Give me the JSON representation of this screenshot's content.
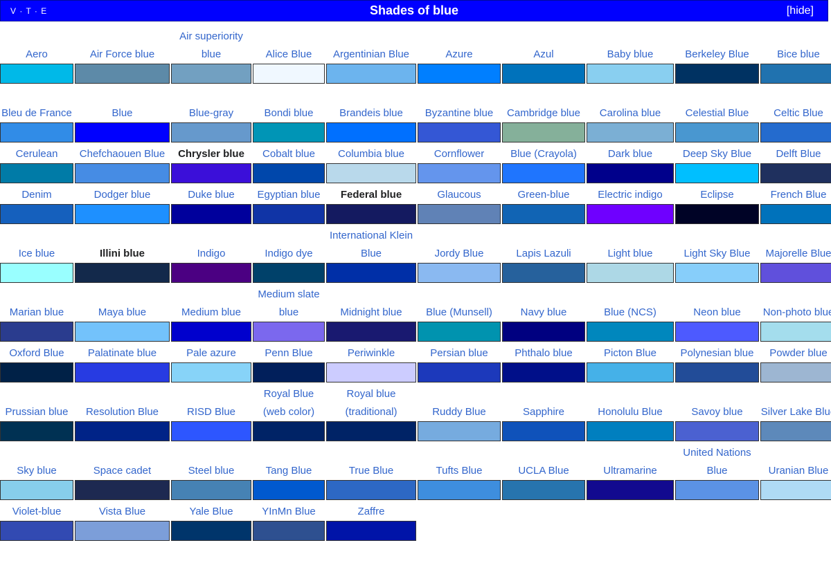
{
  "header": {
    "vte": [
      "V",
      "T",
      "E"
    ],
    "title": "Shades of blue",
    "hide_label": "[hide]",
    "background": "#0000ff"
  },
  "rows": [
    {
      "tall": true,
      "cells": [
        {
          "label": "Aero",
          "color": "#00b9e8"
        },
        {
          "label": "Air Force blue",
          "color": "#5d8aa8"
        },
        {
          "label": "Air superiority blue",
          "color": "#72a0c1"
        },
        {
          "label": "Alice Blue",
          "color": "#f0f8ff"
        },
        {
          "label": "Argentinian Blue",
          "color": "#6cb4ee"
        },
        {
          "label": "Azure",
          "color": "#007fff"
        },
        {
          "label": "Azul",
          "color": "#0072bb"
        },
        {
          "label": "Baby blue",
          "color": "#89cff0"
        },
        {
          "label": "Berkeley Blue",
          "color": "#003262"
        },
        {
          "label": "Bice blue",
          "color": "#2072af"
        }
      ]
    },
    {
      "tall": true,
      "cells": [
        {
          "label": "Bleu de France",
          "color": "#318ce7"
        },
        {
          "label": "Blue",
          "color": "#0000ff"
        },
        {
          "label": "Blue-gray",
          "color": "#6699cc"
        },
        {
          "label": "Bondi blue",
          "color": "#0095b6"
        },
        {
          "label": "Brandeis blue",
          "color": "#0070ff"
        },
        {
          "label": "Byzantine blue",
          "color": "#3457d5"
        },
        {
          "label": "Cambridge blue",
          "color": "#85b09a"
        },
        {
          "label": "Carolina blue",
          "color": "#7bafd4"
        },
        {
          "label": "Celestial Blue",
          "color": "#4997d0"
        },
        {
          "label": "Celtic Blue",
          "color": "#246bce"
        }
      ]
    },
    {
      "tall": false,
      "cells": [
        {
          "label": "Cerulean",
          "color": "#007ba7"
        },
        {
          "label": "Chefchaouen Blue",
          "color": "#468ce4"
        },
        {
          "label": "Chrysler blue",
          "color": "#3b0fd9",
          "bold": true
        },
        {
          "label": "Cobalt blue",
          "color": "#0047ab"
        },
        {
          "label": "Columbia blue",
          "color": "#b9d9eb"
        },
        {
          "label": "Cornflower",
          "color": "#6495ed"
        },
        {
          "label": "Blue (Crayola)",
          "color": "#1f75fe"
        },
        {
          "label": "Dark blue",
          "color": "#00008b"
        },
        {
          "label": "Deep Sky Blue",
          "color": "#00bfff"
        },
        {
          "label": "Delft Blue",
          "color": "#1f305e"
        }
      ]
    },
    {
      "tall": false,
      "cells": [
        {
          "label": "Denim",
          "color": "#1560bd"
        },
        {
          "label": "Dodger blue",
          "color": "#1e90ff"
        },
        {
          "label": "Duke blue",
          "color": "#00009c"
        },
        {
          "label": "Egyptian blue",
          "color": "#1034a6"
        },
        {
          "label": "Federal blue",
          "color": "#141a60",
          "bold": true
        },
        {
          "label": "Glaucous",
          "color": "#6082b6"
        },
        {
          "label": "Green-blue",
          "color": "#1164b4"
        },
        {
          "label": "Electric indigo",
          "color": "#6f00ff"
        },
        {
          "label": "Eclipse",
          "color": "#000326"
        },
        {
          "label": "French Blue",
          "color": "#0072bb"
        }
      ]
    },
    {
      "tall": true,
      "cells": [
        {
          "label": "Ice blue",
          "color": "#99ffff"
        },
        {
          "label": "Illini blue",
          "color": "#13294b",
          "bold": true
        },
        {
          "label": "Indigo",
          "color": "#4b0082"
        },
        {
          "label": "Indigo dye",
          "color": "#00416a"
        },
        {
          "label": "International Klein Blue",
          "color": "#002fa7"
        },
        {
          "label": "Jordy Blue",
          "color": "#8ab9f1"
        },
        {
          "label": "Lapis Lazuli",
          "color": "#26619c"
        },
        {
          "label": "Light blue",
          "color": "#add8e6"
        },
        {
          "label": "Light Sky Blue",
          "color": "#87cefa"
        },
        {
          "label": "Majorelle Blue",
          "color": "#6050dc"
        }
      ]
    },
    {
      "tall": true,
      "cells": [
        {
          "label": "Marian blue",
          "color": "#2a3c8e"
        },
        {
          "label": "Maya blue",
          "color": "#73c2fb"
        },
        {
          "label": "Medium blue",
          "color": "#0000cd"
        },
        {
          "label": "Medium slate blue",
          "color": "#7b68ee"
        },
        {
          "label": "Midnight blue",
          "color": "#191970"
        },
        {
          "label": "Blue (Munsell)",
          "color": "#0093af"
        },
        {
          "label": "Navy blue",
          "color": "#000080"
        },
        {
          "label": "Blue (NCS)",
          "color": "#0087bd"
        },
        {
          "label": "Neon blue",
          "color": "#4d5aff"
        },
        {
          "label": "Non-photo blue",
          "color": "#a4dded"
        }
      ]
    },
    {
      "tall": false,
      "cells": [
        {
          "label": "Oxford Blue",
          "color": "#002147"
        },
        {
          "label": "Palatinate blue",
          "color": "#273be2"
        },
        {
          "label": "Pale azure",
          "color": "#87d3f8"
        },
        {
          "label": "Penn Blue",
          "color": "#011f5b"
        },
        {
          "label": "Periwinkle",
          "color": "#ccccff"
        },
        {
          "label": "Persian blue",
          "color": "#1c39bb"
        },
        {
          "label": "Phthalo blue",
          "color": "#000f89"
        },
        {
          "label": "Picton Blue",
          "color": "#45b1e8"
        },
        {
          "label": "Polynesian blue",
          "color": "#224c98"
        },
        {
          "label": "Powder blue",
          "color": "#9db6d2"
        }
      ]
    },
    {
      "tall": true,
      "cells": [
        {
          "label": "Prussian blue",
          "color": "#003153"
        },
        {
          "label": "Resolution Blue",
          "color": "#002387"
        },
        {
          "label": "RISD Blue",
          "color": "#2d56ff"
        },
        {
          "label": "Royal Blue (web color)",
          "color": "#002366"
        },
        {
          "label": "Royal blue (traditional)",
          "color": "#002366"
        },
        {
          "label": "Ruddy Blue",
          "color": "#76abdf"
        },
        {
          "label": "Sapphire",
          "color": "#0f52ba"
        },
        {
          "label": "Honolulu Blue",
          "color": "#007fbf"
        },
        {
          "label": "Savoy blue",
          "color": "#4b61d1"
        },
        {
          "label": "Silver Lake Blue",
          "color": "#5d89ba"
        }
      ]
    },
    {
      "tall": true,
      "cells": [
        {
          "label": "Sky blue",
          "color": "#87ceeb"
        },
        {
          "label": "Space cadet",
          "color": "#1d2951"
        },
        {
          "label": "Steel blue",
          "color": "#4682b4"
        },
        {
          "label": "Tang Blue",
          "color": "#0059cf"
        },
        {
          "label": "True Blue",
          "color": "#2d68c4"
        },
        {
          "label": "Tufts Blue",
          "color": "#3e8ede"
        },
        {
          "label": "UCLA Blue",
          "color": "#2774ae"
        },
        {
          "label": "Ultramarine",
          "color": "#120a8f"
        },
        {
          "label": "United Nations Blue",
          "color": "#5b92e5"
        },
        {
          "label": "Uranian Blue",
          "color": "#afdbf5"
        }
      ]
    },
    {
      "tall": false,
      "cells": [
        {
          "label": "Violet-blue",
          "color": "#324ab2"
        },
        {
          "label": "Vista Blue",
          "color": "#7c9ed9"
        },
        {
          "label": "Yale Blue",
          "color": "#00356b"
        },
        {
          "label": "YInMn Blue",
          "color": "#2e5090"
        },
        {
          "label": "Zaffre",
          "color": "#0014a8"
        }
      ]
    }
  ]
}
